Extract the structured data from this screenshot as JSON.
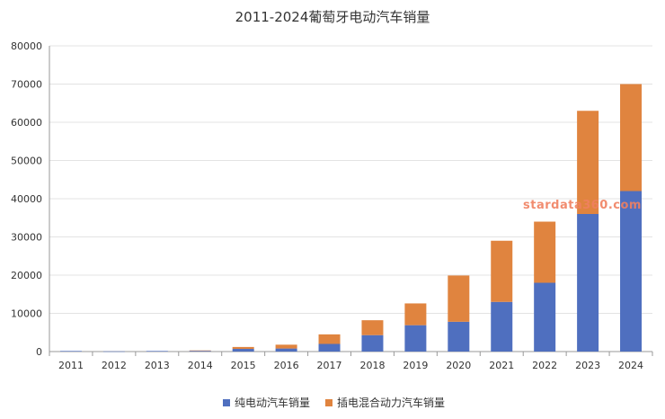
{
  "chart_data": {
    "type": "bar",
    "stacked": true,
    "title": "2011-2024葡萄牙电动汽车销量",
    "categories": [
      "2011",
      "2012",
      "2013",
      "2014",
      "2015",
      "2016",
      "2017",
      "2018",
      "2019",
      "2020",
      "2021",
      "2022",
      "2023",
      "2024"
    ],
    "series": [
      {
        "name": "纯电动汽车销量",
        "color": "#4f6fbf",
        "values": [
          150,
          50,
          150,
          200,
          700,
          800,
          2000,
          4300,
          6900,
          7800,
          13000,
          18000,
          36000,
          42000
        ]
      },
      {
        "name": "插电混合动力汽车销量",
        "color": "#e0843f",
        "values": [
          0,
          0,
          0,
          100,
          500,
          1000,
          2500,
          3900,
          5700,
          12100,
          16000,
          16000,
          27000,
          28000
        ]
      }
    ],
    "ylim": [
      0,
      80000
    ],
    "yticks": [
      0,
      10000,
      20000,
      30000,
      40000,
      50000,
      60000,
      70000,
      80000
    ],
    "grid": true,
    "legend_position": "bottom",
    "watermark": "stardata360.com"
  }
}
